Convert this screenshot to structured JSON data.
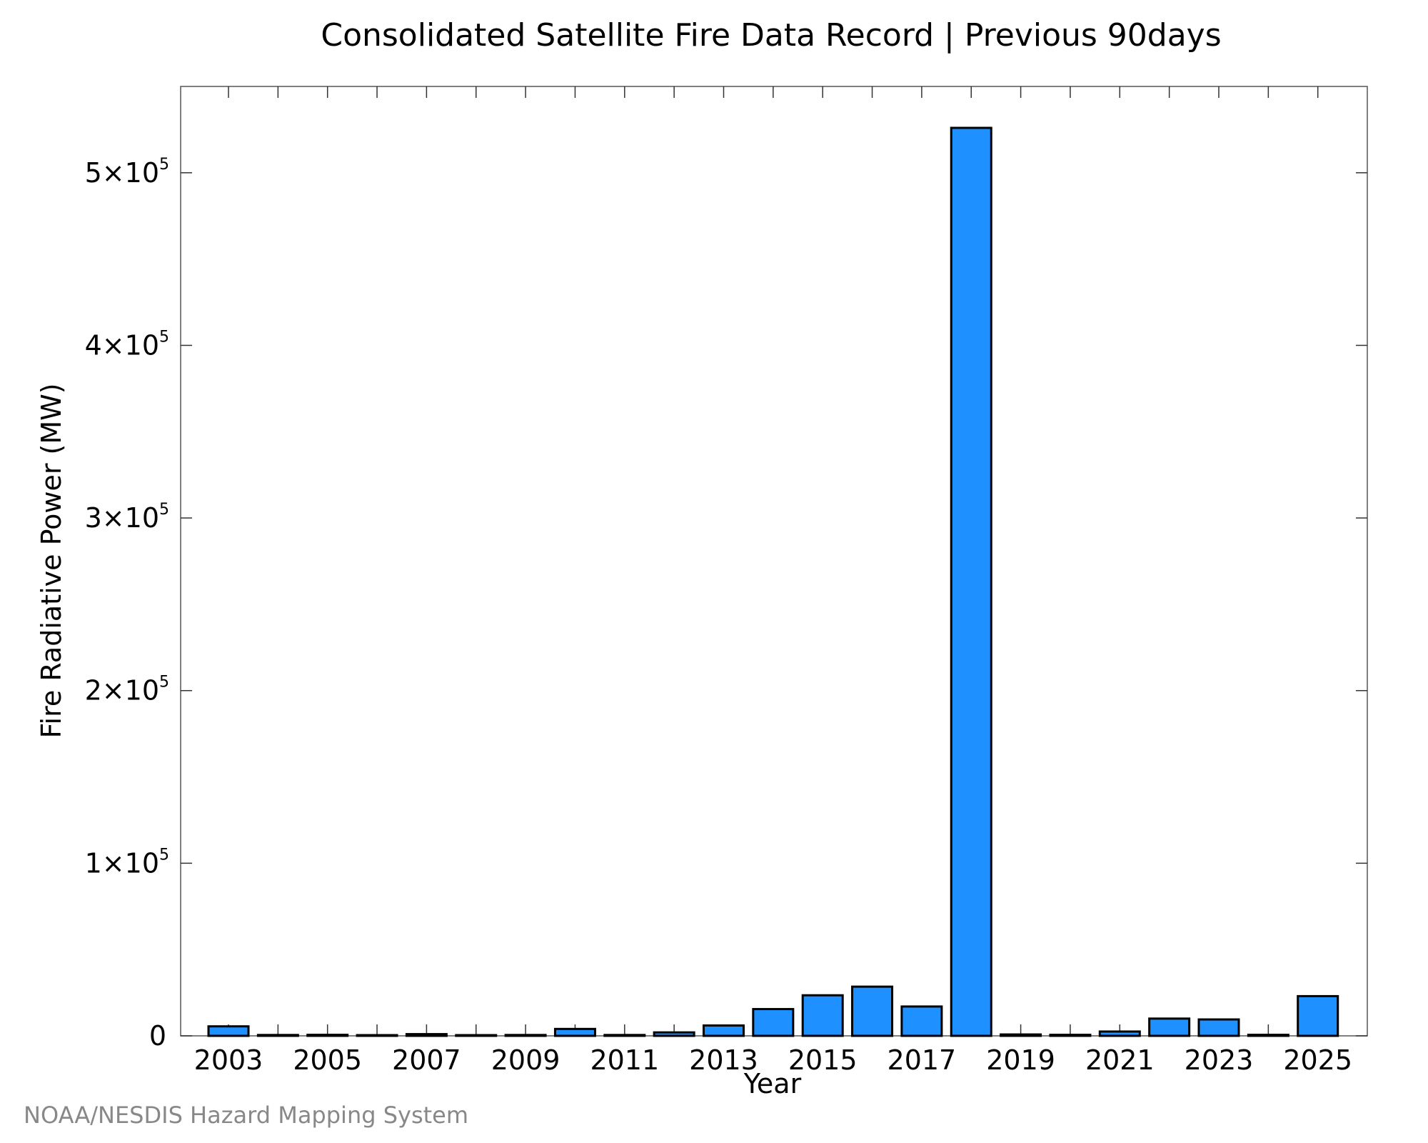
{
  "chart_data": {
    "type": "bar",
    "title": "Consolidated Satellite Fire Data Record | Previous 90days",
    "xlabel": "Year",
    "ylabel": "Fire Radiative Power (MW)",
    "ylim": [
      0,
      550000
    ],
    "categories": [
      "2003",
      "2004",
      "2005",
      "2006",
      "2007",
      "2008",
      "2009",
      "2010",
      "2011",
      "2012",
      "2013",
      "2014",
      "2015",
      "2016",
      "2017",
      "2018",
      "2019",
      "2020",
      "2021",
      "2022",
      "2023",
      "2024",
      "2025"
    ],
    "values": [
      5500,
      500,
      600,
      300,
      1000,
      300,
      500,
      4000,
      500,
      2000,
      6000,
      15500,
      23500,
      28500,
      17000,
      526000,
      800,
      600,
      2500,
      10000,
      9500,
      600,
      23000
    ],
    "x_tick_labels": [
      "2003",
      "2005",
      "2007",
      "2009",
      "2011",
      "2013",
      "2015",
      "2017",
      "2019",
      "2021",
      "2023",
      "2025"
    ],
    "y_ticks": [
      {
        "value": 0,
        "mantissa": "0",
        "exp": ""
      },
      {
        "value": 100000,
        "mantissa": "1×10",
        "exp": "5"
      },
      {
        "value": 200000,
        "mantissa": "2×10",
        "exp": "5"
      },
      {
        "value": 300000,
        "mantissa": "3×10",
        "exp": "5"
      },
      {
        "value": 400000,
        "mantissa": "4×10",
        "exp": "5"
      },
      {
        "value": 500000,
        "mantissa": "5×10",
        "exp": "5"
      }
    ],
    "grid": false,
    "legend": "none",
    "bar_color": "#1e90ff",
    "bar_edge_color": "#000000"
  },
  "footer": {
    "credit": "NOAA/NESDIS Hazard Mapping System"
  }
}
